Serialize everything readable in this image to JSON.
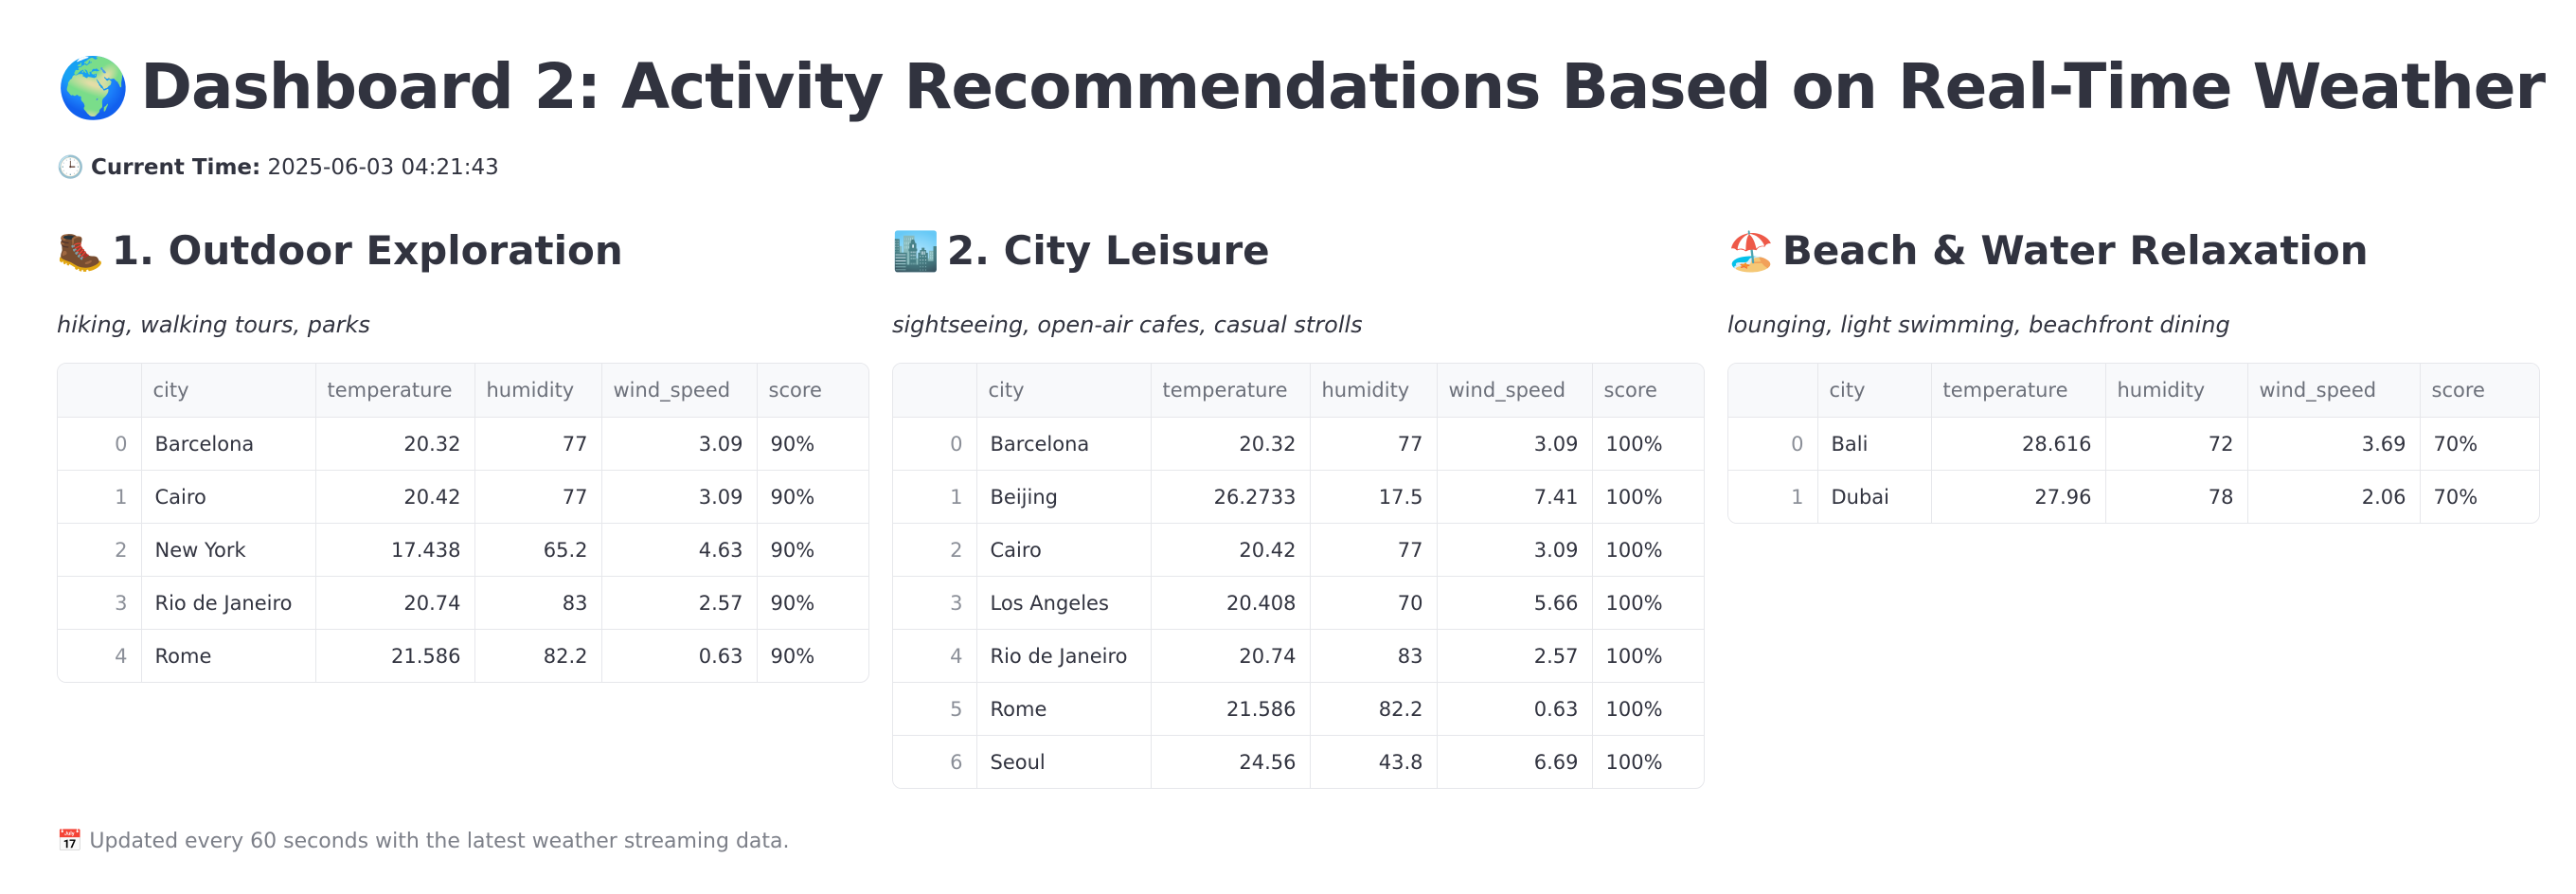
{
  "header": {
    "globe_icon": "🌍",
    "title": "Dashboard 2: Activity Recommendations Based on Real-Time Weather",
    "time_icon": "🕒",
    "time_label": "Current Time:",
    "time_value": "2025-06-03 04:21:43"
  },
  "columns_header": [
    "",
    "city",
    "temperature",
    "humidity",
    "wind_speed",
    "score"
  ],
  "sections": [
    {
      "icon": "🥾",
      "title": "1. Outdoor Exploration",
      "desc": "hiking, walking tours, parks",
      "rows": [
        [
          "0",
          "Barcelona",
          "20.32",
          "77",
          "3.09",
          "90%"
        ],
        [
          "1",
          "Cairo",
          "20.42",
          "77",
          "3.09",
          "90%"
        ],
        [
          "2",
          "New York",
          "17.438",
          "65.2",
          "4.63",
          "90%"
        ],
        [
          "3",
          "Rio de Janeiro",
          "20.74",
          "83",
          "2.57",
          "90%"
        ],
        [
          "4",
          "Rome",
          "21.586",
          "82.2",
          "0.63",
          "90%"
        ]
      ]
    },
    {
      "icon": "🏙️",
      "title": "2. City Leisure",
      "desc": "sightseeing, open-air cafes, casual strolls",
      "rows": [
        [
          "0",
          "Barcelona",
          "20.32",
          "77",
          "3.09",
          "100%"
        ],
        [
          "1",
          "Beijing",
          "26.2733",
          "17.5",
          "7.41",
          "100%"
        ],
        [
          "2",
          "Cairo",
          "20.42",
          "77",
          "3.09",
          "100%"
        ],
        [
          "3",
          "Los Angeles",
          "20.408",
          "70",
          "5.66",
          "100%"
        ],
        [
          "4",
          "Rio de Janeiro",
          "20.74",
          "83",
          "2.57",
          "100%"
        ],
        [
          "5",
          "Rome",
          "21.586",
          "82.2",
          "0.63",
          "100%"
        ],
        [
          "6",
          "Seoul",
          "24.56",
          "43.8",
          "6.69",
          "100%"
        ]
      ]
    },
    {
      "icon": "🏖️",
      "title": "Beach & Water Relaxation",
      "desc": "lounging, light swimming, beachfront dining",
      "rows": [
        [
          "0",
          "Bali",
          "28.616",
          "72",
          "3.69",
          "70%"
        ],
        [
          "1",
          "Dubai",
          "27.96",
          "78",
          "2.06",
          "70%"
        ]
      ]
    }
  ],
  "footer": {
    "icon": "📅",
    "text": "Updated every 60 seconds with the latest weather streaming data."
  }
}
